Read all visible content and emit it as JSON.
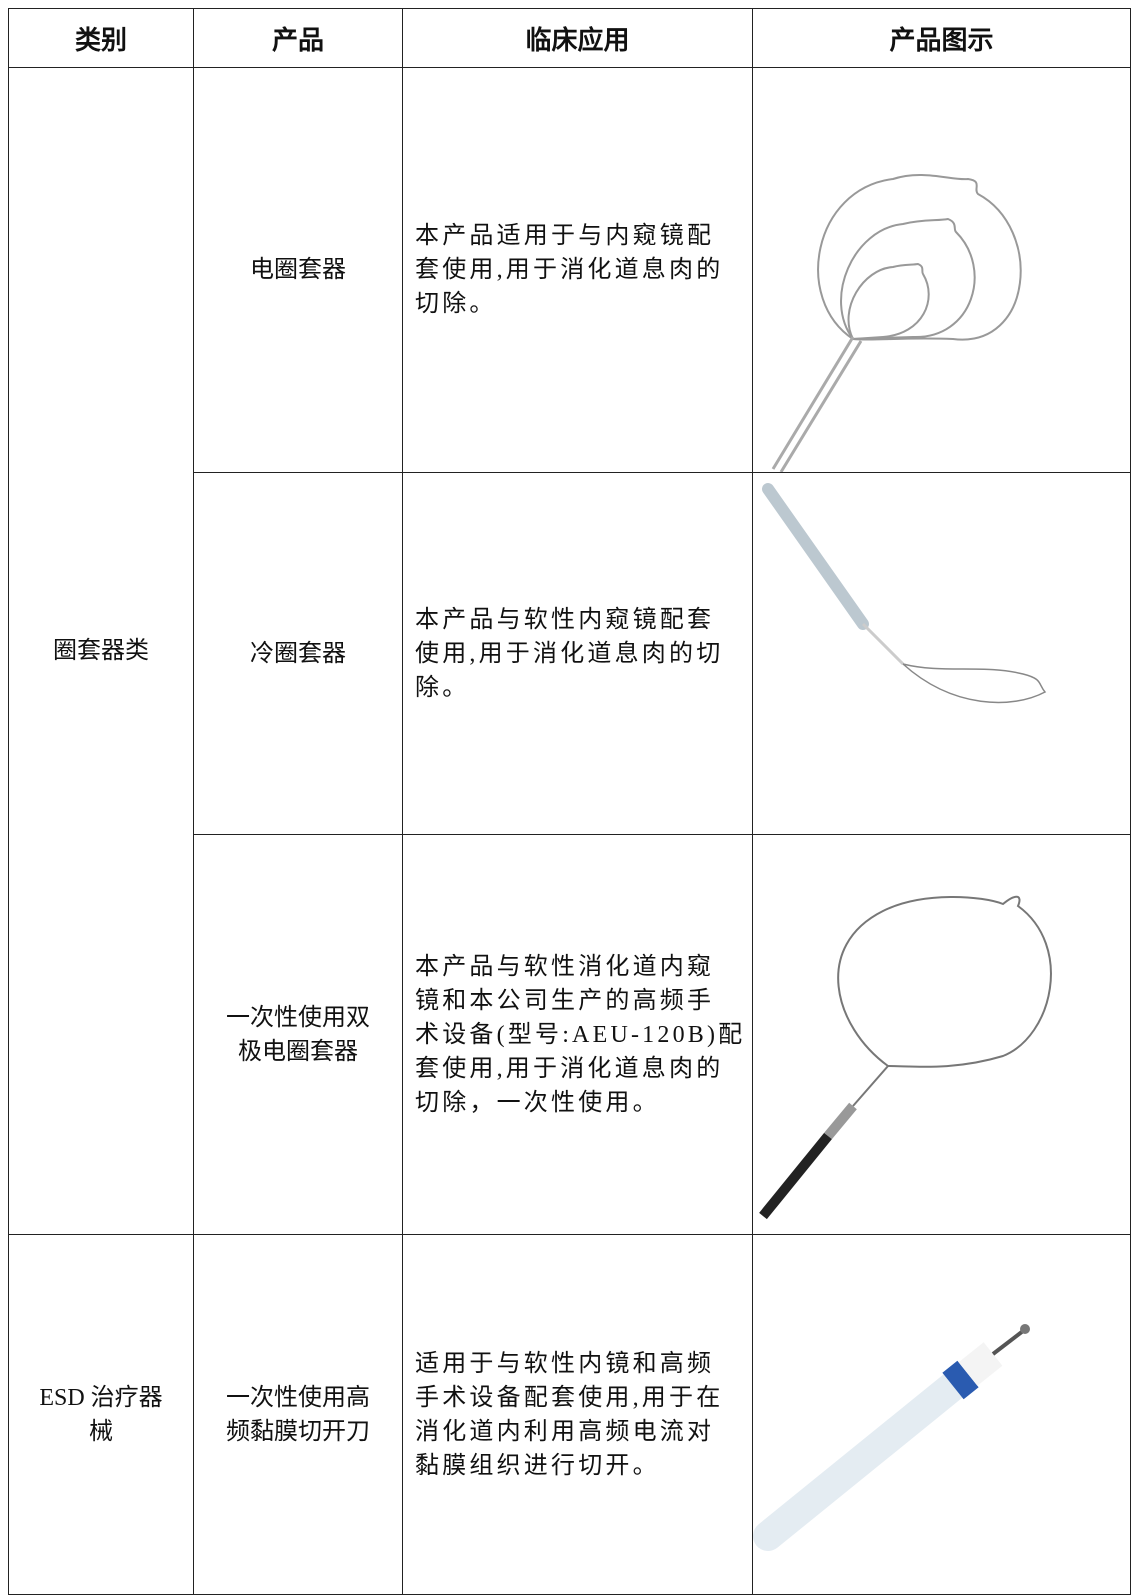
{
  "table": {
    "header": [
      "类别",
      "产品",
      "临床应用",
      "产品图示"
    ],
    "groups": [
      {
        "category": [
          "圈套器类"
        ],
        "items": [
          {
            "product": [
              "电圈套器"
            ],
            "application": [
              "本产品适用于与内窥镜配",
              "套使用,用于消化道息肉的",
              "切除。"
            ]
          },
          {
            "product": [
              "冷圈套器"
            ],
            "application": [
              "本产品与软性内窥镜配套",
              "使用,用于消化道息肉的切",
              "除。"
            ]
          },
          {
            "product": [
              "一次性使用双",
              "极电圈套器"
            ],
            "application": [
              "本产品与软性消化道内窥",
              "镜和本公司生产的高频手",
              "术设备(型号:AEU-120B)配",
              "套使用,用于消化道息肉的",
              "切除，一次性使用。"
            ]
          }
        ]
      },
      {
        "category": [
          "ESD 治疗器",
          "械"
        ],
        "items": [
          {
            "product": [
              "一次性使用高",
              "频黏膜切开刀"
            ],
            "application": [
              "适用于与软性内镜和高频",
              "手术设备配套使用,用于在",
              "消化道内利用高频电流对",
              "黏膜组织进行切开。"
            ]
          }
        ]
      }
    ]
  }
}
